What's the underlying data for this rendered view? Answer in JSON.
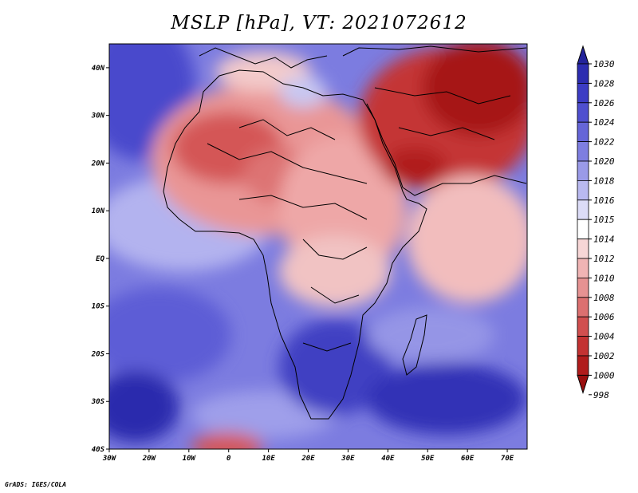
{
  "title": "MSLP [hPa], VT: 2021072612",
  "footer": "GrADS: IGES/COLA",
  "map": {
    "lon_range": [
      -30,
      75
    ],
    "lat_range": [
      -40,
      45
    ],
    "x_ticks": [
      "30W",
      "20W",
      "10W",
      "0",
      "10E",
      "20E",
      "30E",
      "40E",
      "50E",
      "60E",
      "70E"
    ],
    "y_ticks": [
      "40N",
      "30N",
      "20N",
      "10N",
      "EQ",
      "10S",
      "20S",
      "30S",
      "40S"
    ]
  },
  "colorbar": {
    "labels": [
      "1030",
      "1028",
      "1026",
      "1024",
      "1022",
      "1020",
      "1018",
      "1016",
      "1015",
      "1014",
      "1012",
      "1010",
      "1008",
      "1006",
      "1004",
      "1002",
      "1000",
      "998"
    ],
    "colors": [
      "#23239b",
      "#2c2cb0",
      "#3c3cc4",
      "#4f4fcf",
      "#6565d8",
      "#7e7ee0",
      "#9a9ae8",
      "#b9b9f0",
      "#dcdcf7",
      "#ffffff",
      "#f7d6d6",
      "#f0b4b4",
      "#e69292",
      "#dc7070",
      "#d14f4f",
      "#c33232",
      "#b01c1c",
      "#9a0f0f"
    ]
  }
}
